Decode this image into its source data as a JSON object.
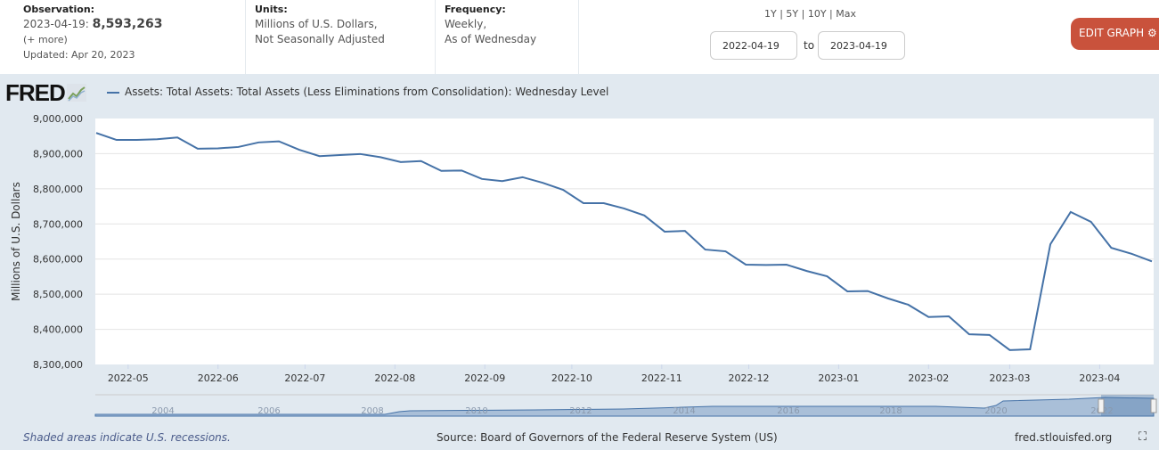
{
  "header": {
    "observation_label": "Observation:",
    "observation_date": "2023-04-19:",
    "observation_value": "8,593,263",
    "more_link": "(+ more)",
    "updated": "Updated: Apr 20, 2023",
    "units_label": "Units:",
    "units_line1": "Millions of U.S. Dollars,",
    "units_line2": "Not Seasonally Adjusted",
    "frequency_label": "Frequency:",
    "frequency_line1": "Weekly,",
    "frequency_line2": "As of Wednesday",
    "range_buttons": [
      "1Y",
      "5Y",
      "10Y",
      "Max"
    ],
    "start_date": "2022-04-19",
    "to_label": "to",
    "end_date": "2023-04-19",
    "edit_graph": "EDIT GRAPH",
    "edit_color": "#c9523c"
  },
  "logo": "FRED",
  "footer": {
    "recession_note": "Shaded areas indicate U.S. recessions.",
    "source": "Source: Board of Governors of the Federal Reserve System (US)",
    "site": "fred.stlouisfed.org"
  },
  "navigator": {
    "year_labels": [
      "2004",
      "2006",
      "2008",
      "2010",
      "2012",
      "2014",
      "2016",
      "2018",
      "2020",
      "2022"
    ]
  },
  "chart_data": {
    "type": "line",
    "title": "",
    "xlabel": "",
    "ylabel": "Millions of U.S. Dollars",
    "ylim": [
      8300000,
      9000000
    ],
    "yticks": [
      8300000,
      8400000,
      8500000,
      8600000,
      8700000,
      8800000,
      8900000,
      9000000
    ],
    "ytick_labels": [
      "8,300,000",
      "8,400,000",
      "8,500,000",
      "8,600,000",
      "8,700,000",
      "8,800,000",
      "8,900,000",
      "9,000,000"
    ],
    "xticks": [
      "2022-05",
      "2022-06",
      "2022-07",
      "2022-08",
      "2022-09",
      "2022-10",
      "2022-11",
      "2022-12",
      "2023-01",
      "2023-02",
      "2023-03",
      "2023-04"
    ],
    "grid": true,
    "legend": "top-left",
    "color": "#4572a7",
    "series": [
      {
        "name": "Assets: Total Assets: Total Assets (Less Eliminations from Consolidation): Wednesday Level",
        "x": [
          "2022-04-20",
          "2022-04-27",
          "2022-05-04",
          "2022-05-11",
          "2022-05-18",
          "2022-05-25",
          "2022-06-01",
          "2022-06-08",
          "2022-06-15",
          "2022-06-22",
          "2022-06-29",
          "2022-07-06",
          "2022-07-13",
          "2022-07-20",
          "2022-07-27",
          "2022-08-03",
          "2022-08-10",
          "2022-08-17",
          "2022-08-24",
          "2022-08-31",
          "2022-09-07",
          "2022-09-14",
          "2022-09-21",
          "2022-09-28",
          "2022-10-05",
          "2022-10-12",
          "2022-10-19",
          "2022-10-26",
          "2022-11-02",
          "2022-11-09",
          "2022-11-16",
          "2022-11-23",
          "2022-11-30",
          "2022-12-07",
          "2022-12-14",
          "2022-12-21",
          "2022-12-28",
          "2023-01-04",
          "2023-01-11",
          "2023-01-18",
          "2023-01-25",
          "2023-02-01",
          "2023-02-08",
          "2023-02-15",
          "2023-02-22",
          "2023-03-01",
          "2023-03-08",
          "2023-03-15",
          "2023-03-22",
          "2023-03-29",
          "2023-04-05",
          "2023-04-12",
          "2023-04-19"
        ],
        "values": [
          8959000,
          8939000,
          8939000,
          8941000,
          8946000,
          8914000,
          8915000,
          8919000,
          8932000,
          8935000,
          8911000,
          8893000,
          8896000,
          8899000,
          8890000,
          8876000,
          8879000,
          8851000,
          8852000,
          8828000,
          8822000,
          8833000,
          8817000,
          8797000,
          8759000,
          8759000,
          8744000,
          8724000,
          8678000,
          8680000,
          8627000,
          8622000,
          8584000,
          8583000,
          8584000,
          8566000,
          8551000,
          8508000,
          8509000,
          8488000,
          8470000,
          8435000,
          8437000,
          8386000,
          8384000,
          8341000,
          8343000,
          8642000,
          8734000,
          8706000,
          8632000,
          8615000,
          8593263
        ]
      }
    ]
  }
}
